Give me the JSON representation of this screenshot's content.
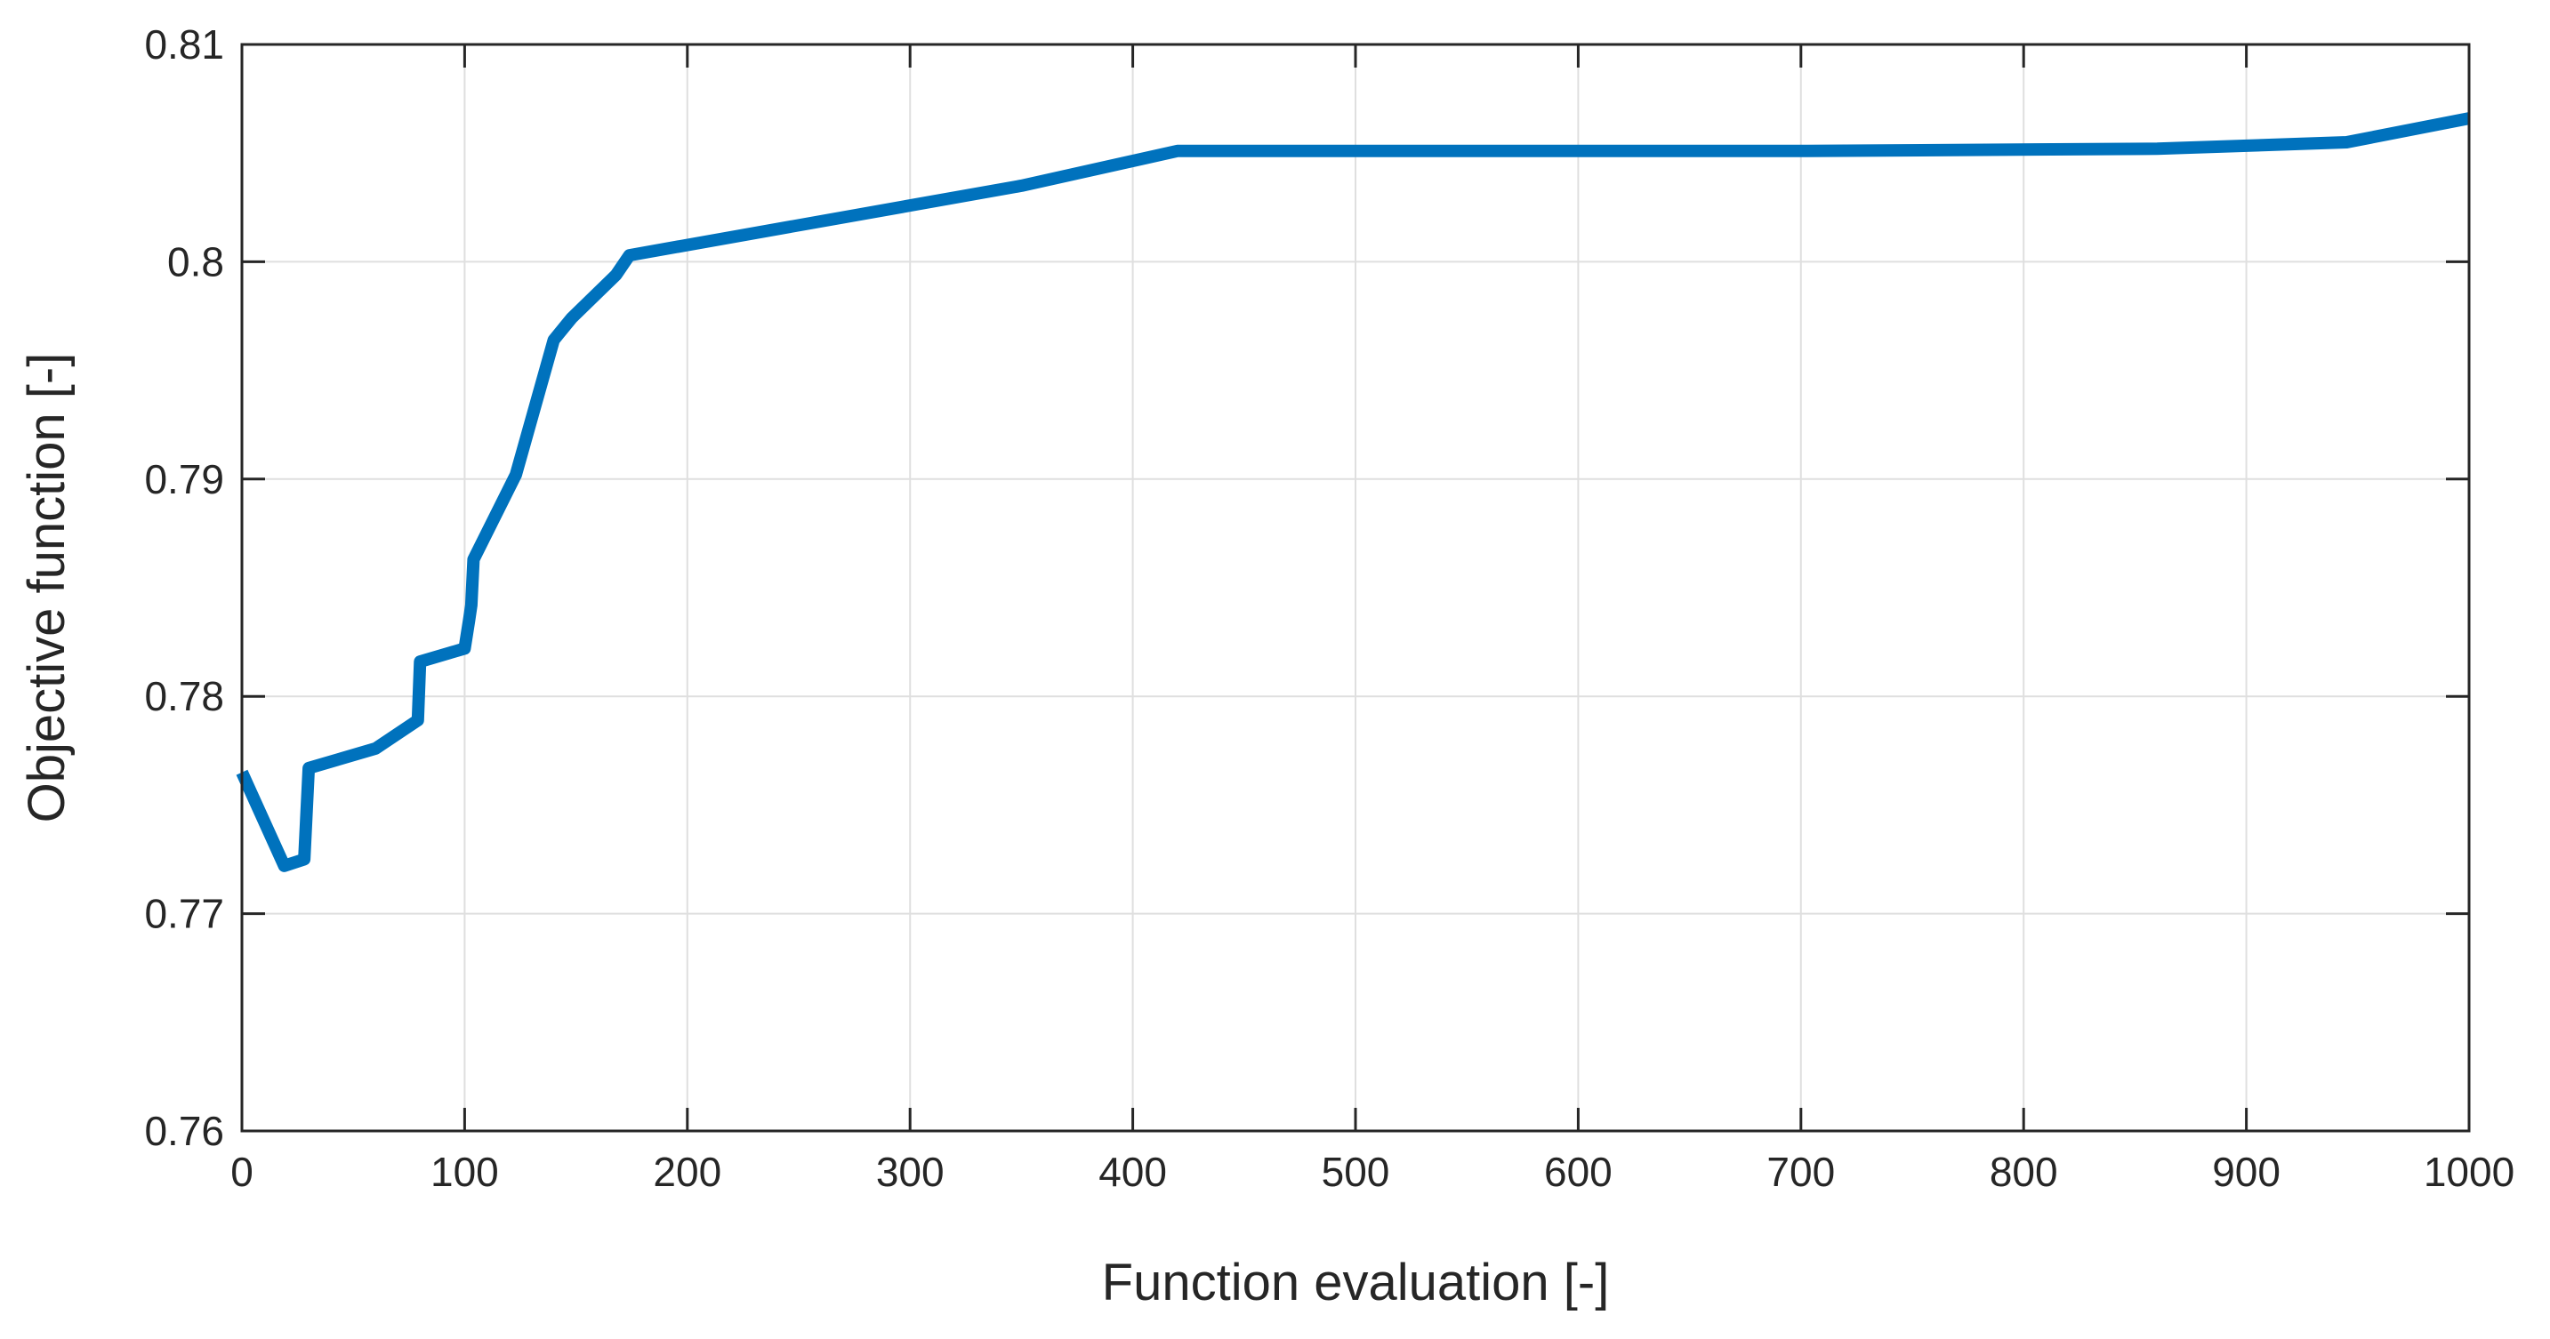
{
  "chart_data": {
    "type": "line",
    "title": "",
    "xlabel": "Function evaluation [-]",
    "ylabel": "Objective function [-]",
    "xlim": [
      0,
      1000
    ],
    "ylim": [
      0.76,
      0.81
    ],
    "xticks": [
      0,
      100,
      200,
      300,
      400,
      500,
      600,
      700,
      800,
      900,
      1000
    ],
    "xtick_labels": [
      "0",
      "100",
      "200",
      "300",
      "400",
      "500",
      "600",
      "700",
      "800",
      "900",
      "1000"
    ],
    "yticks": [
      0.76,
      0.77,
      0.78,
      0.79,
      0.8,
      0.81
    ],
    "ytick_labels": [
      "0.76",
      "0.77",
      "0.78",
      "0.79",
      "0.8",
      "0.81"
    ],
    "grid": true,
    "line_color": "#0072BD",
    "series": [
      {
        "x": [
          0,
          19,
          28,
          30,
          60,
          79,
          80,
          100,
          102,
          103,
          104,
          123,
          140,
          148,
          168,
          174,
          350,
          420,
          700,
          860,
          945,
          1000
        ],
        "y": [
          0.7765,
          0.7722,
          0.7725,
          0.7767,
          0.7776,
          0.7789,
          0.7816,
          0.7822,
          0.7835,
          0.7842,
          0.7863,
          0.7902,
          0.7964,
          0.7974,
          0.7994,
          0.8003,
          0.8035,
          0.8051,
          0.8051,
          0.8052,
          0.8055,
          0.8066
        ]
      }
    ]
  }
}
